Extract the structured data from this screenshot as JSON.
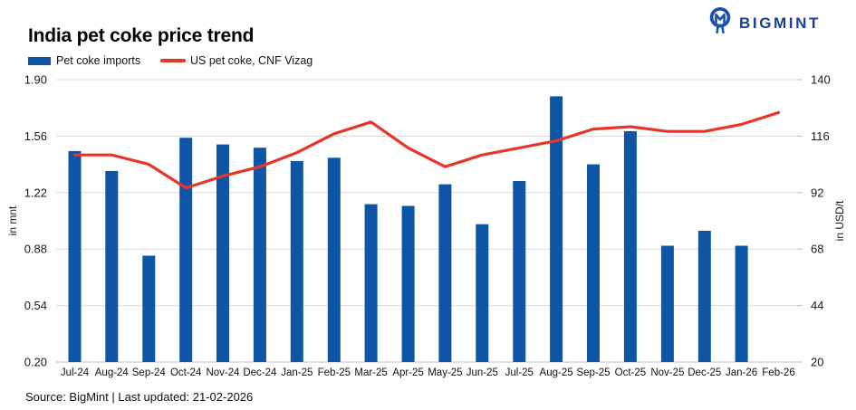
{
  "header": {
    "title": "India pet coke price trend",
    "logo_text": "BIGMINT"
  },
  "legend": {
    "items": [
      {
        "label": "Pet coke imports",
        "swatch": "bar-swatch",
        "color": "#0f55a5"
      },
      {
        "label": "US pet coke, CNF Vizag",
        "swatch": "line-swatch",
        "color": "#e8352c"
      }
    ]
  },
  "footer": {
    "source_line": "Source: BigMint | Last updated: 21-02-2026"
  },
  "colors": {
    "bar": "#0f55a5",
    "line": "#e8352c",
    "grid": "#d9d9d9",
    "axis_line": "#bfbfbf",
    "tick_text": "#1a1a1a",
    "logo_navy": "#1b3e9b"
  },
  "chart_data": {
    "type": "bar+line combo",
    "title": "India pet coke price trend",
    "categories": [
      "Jul-24",
      "Aug-24",
      "Sep-24",
      "Oct-24",
      "Nov-24",
      "Dec-24",
      "Jan-25",
      "Feb-25",
      "Mar-25",
      "Apr-25",
      "May-25",
      "Jun-25",
      "Jul-25",
      "Aug-25",
      "Sep-25",
      "Oct-25",
      "Nov-25",
      "Dec-25",
      "Jan-26",
      "Feb-26"
    ],
    "series": [
      {
        "name": "Pet coke imports",
        "type": "bar",
        "axis": "left",
        "unit": "mnt",
        "color": "#0f55a5",
        "values": [
          1.47,
          1.35,
          0.84,
          1.55,
          1.51,
          1.49,
          1.41,
          1.43,
          1.15,
          1.14,
          1.27,
          1.03,
          1.29,
          1.8,
          1.39,
          1.59,
          0.9,
          0.99,
          0.9,
          null
        ]
      },
      {
        "name": "US pet coke, CNF Vizag",
        "type": "line",
        "axis": "right",
        "unit": "USD/t",
        "color": "#e8352c",
        "values": [
          108,
          108,
          104,
          94,
          99,
          103,
          109,
          117,
          122,
          111,
          103,
          108,
          111,
          114,
          119,
          120,
          118,
          118,
          121,
          126
        ]
      }
    ],
    "left_axis": {
      "label": "in mnt",
      "min": 0.2,
      "max": 1.9,
      "tick_labels": [
        "1.90",
        "1.56",
        "1.22",
        "0.88",
        "0.54",
        "0.20"
      ],
      "tick_values": [
        1.9,
        1.56,
        1.22,
        0.88,
        0.54,
        0.2
      ]
    },
    "right_axis": {
      "label": "in USD/t",
      "min": 20,
      "max": 140,
      "tick_labels": [
        "140",
        "116",
        "92",
        "68",
        "44",
        "20"
      ],
      "tick_values": [
        140,
        116,
        92,
        68,
        44,
        20
      ]
    },
    "grid": true,
    "legend_position": "top-left"
  }
}
